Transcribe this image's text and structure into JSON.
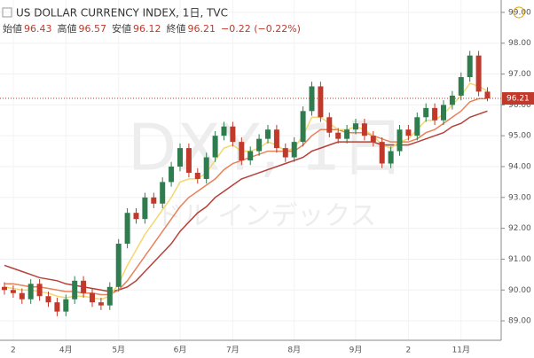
{
  "chart_data": {
    "type": "candlestick",
    "title": "US DOLLAR CURRENCY INDEX, 1日, TVC",
    "ohlc_header": [
      {
        "name": "始値",
        "value": 96.43
      },
      {
        "name": "高値",
        "value": 96.57
      },
      {
        "name": "安値",
        "value": 96.12
      },
      {
        "name": "終値",
        "value": 96.21
      }
    ],
    "change_label": "−0.22 (−0.22%)",
    "watermark": "DXY, 1日",
    "watermark_sub": "ドル インデックス",
    "last_price": 96.21,
    "categories": [
      null,
      "2",
      null,
      null,
      null,
      null,
      null,
      "4月",
      null,
      null,
      null,
      null,
      null,
      "5月",
      null,
      null,
      null,
      null,
      null,
      null,
      "6月",
      null,
      null,
      null,
      null,
      null,
      "7月",
      null,
      null,
      null,
      null,
      null,
      null,
      "8月",
      null,
      null,
      null,
      null,
      null,
      null,
      "9月",
      null,
      null,
      null,
      null,
      null,
      "2",
      null,
      null,
      null,
      null,
      null,
      "11月",
      null,
      null,
      null
    ],
    "open": [
      90.1,
      90.0,
      89.9,
      89.7,
      90.2,
      89.8,
      89.6,
      89.3,
      89.7,
      90.3,
      89.9,
      89.6,
      89.5,
      90.1,
      91.5,
      92.5,
      92.3,
      93.0,
      92.8,
      93.5,
      94.0,
      94.6,
      93.8,
      93.6,
      94.3,
      95.0,
      95.3,
      94.8,
      94.2,
      94.5,
      94.9,
      95.2,
      94.6,
      94.3,
      94.8,
      95.8,
      96.6,
      95.6,
      95.1,
      94.9,
      95.2,
      95.4,
      95.0,
      94.8,
      94.1,
      94.5,
      95.2,
      95.0,
      95.6,
      95.9,
      95.5,
      96.0,
      96.3,
      96.9,
      97.6,
      96.43
    ],
    "high": [
      90.25,
      90.15,
      90.05,
      90.35,
      90.35,
      89.95,
      89.75,
      89.85,
      90.45,
      90.45,
      90.05,
      89.75,
      90.25,
      91.65,
      92.65,
      92.65,
      93.15,
      93.15,
      93.65,
      94.15,
      94.75,
      94.75,
      93.95,
      94.45,
      95.15,
      95.45,
      95.45,
      94.95,
      94.65,
      95.05,
      95.35,
      95.35,
      94.75,
      94.95,
      95.95,
      96.75,
      96.75,
      95.75,
      95.25,
      95.35,
      95.55,
      95.55,
      95.15,
      94.95,
      94.65,
      95.35,
      95.35,
      95.75,
      96.05,
      96.05,
      96.15,
      96.45,
      97.05,
      97.75,
      97.75,
      96.57
    ],
    "low": [
      89.85,
      89.75,
      89.55,
      89.55,
      89.65,
      89.45,
      89.15,
      89.15,
      89.55,
      89.75,
      89.45,
      89.35,
      89.35,
      89.95,
      91.35,
      92.15,
      92.15,
      92.65,
      92.65,
      93.35,
      93.85,
      93.65,
      93.45,
      93.45,
      94.15,
      94.85,
      94.65,
      94.05,
      94.05,
      94.35,
      94.75,
      94.45,
      94.15,
      94.15,
      94.65,
      95.65,
      95.45,
      94.95,
      94.75,
      94.75,
      95.05,
      94.85,
      94.65,
      93.95,
      93.95,
      94.35,
      94.85,
      94.85,
      95.45,
      95.35,
      95.35,
      95.85,
      96.15,
      96.75,
      96.28,
      96.12
    ],
    "close": [
      90.0,
      89.9,
      89.7,
      90.2,
      89.8,
      89.6,
      89.3,
      89.7,
      90.3,
      89.9,
      89.6,
      89.5,
      90.1,
      91.5,
      92.5,
      92.3,
      93.0,
      92.8,
      93.5,
      94.0,
      94.6,
      93.8,
      93.6,
      94.3,
      95.0,
      95.3,
      94.8,
      94.2,
      94.5,
      94.9,
      95.2,
      94.6,
      94.3,
      94.8,
      95.8,
      96.6,
      95.6,
      95.1,
      94.9,
      95.2,
      95.4,
      95.0,
      94.8,
      94.1,
      94.5,
      95.2,
      95.0,
      95.6,
      95.9,
      95.5,
      96.0,
      96.3,
      96.9,
      97.6,
      96.43,
      96.21
    ],
    "up_color": "#2f7d4f",
    "down_color": "#c0392b",
    "series": [
      {
        "color": "#b5413a",
        "values": [
          90.8,
          90.7,
          90.6,
          90.5,
          90.4,
          90.35,
          90.3,
          90.2,
          90.15,
          90.1,
          90.05,
          90.0,
          89.95,
          90.0,
          90.1,
          90.3,
          90.6,
          90.9,
          91.2,
          91.5,
          91.9,
          92.2,
          92.5,
          92.7,
          93.0,
          93.2,
          93.4,
          93.6,
          93.7,
          93.8,
          93.9,
          94.0,
          94.1,
          94.2,
          94.3,
          94.5,
          94.6,
          94.7,
          94.8,
          94.8,
          94.8,
          94.8,
          94.8,
          94.7,
          94.7,
          94.7,
          94.7,
          94.8,
          94.9,
          95.0,
          95.1,
          95.3,
          95.4,
          95.6,
          95.7,
          95.8
        ]
      },
      {
        "color": "#e8825a",
        "values": [
          90.2,
          90.2,
          90.15,
          90.1,
          90.1,
          90.05,
          90.0,
          89.95,
          89.95,
          89.9,
          89.9,
          89.85,
          89.85,
          90.0,
          90.3,
          90.7,
          91.1,
          91.5,
          91.9,
          92.3,
          92.7,
          93.0,
          93.2,
          93.4,
          93.6,
          93.9,
          94.1,
          94.2,
          94.3,
          94.4,
          94.5,
          94.5,
          94.5,
          94.5,
          94.7,
          95.0,
          95.2,
          95.2,
          95.2,
          95.1,
          95.1,
          95.1,
          95.0,
          94.9,
          94.8,
          94.8,
          94.8,
          94.9,
          95.1,
          95.2,
          95.4,
          95.6,
          95.8,
          96.1,
          96.2,
          96.2
        ]
      },
      {
        "color": "#f5d76e",
        "values": [
          90.1,
          90.05,
          90.0,
          90.0,
          89.95,
          89.9,
          89.8,
          89.75,
          89.8,
          89.8,
          89.75,
          89.7,
          89.8,
          90.2,
          90.8,
          91.3,
          91.8,
          92.2,
          92.6,
          93.0,
          93.5,
          93.6,
          93.6,
          93.8,
          94.2,
          94.6,
          94.7,
          94.5,
          94.5,
          94.6,
          94.8,
          94.7,
          94.5,
          94.6,
          95.0,
          95.6,
          95.6,
          95.4,
          95.2,
          95.2,
          95.3,
          95.2,
          95.0,
          94.7,
          94.6,
          94.8,
          94.9,
          95.2,
          95.5,
          95.5,
          95.7,
          96.0,
          96.3,
          96.7,
          96.6,
          96.45
        ]
      }
    ],
    "ylim": [
      88.37,
      99.4
    ],
    "yticks": [
      {
        "value": 89,
        "label": "89.00"
      },
      {
        "value": 90,
        "label": "90.00"
      },
      {
        "value": 91,
        "label": "91.00"
      },
      {
        "value": 92,
        "label": "92.00"
      },
      {
        "value": 93,
        "label": "93.00"
      },
      {
        "value": 94,
        "label": "94.00"
      },
      {
        "value": 95,
        "label": "95.00"
      },
      {
        "value": 96,
        "label": "96.00"
      },
      {
        "value": 97,
        "label": "97.00"
      },
      {
        "value": 98,
        "label": "98.00"
      },
      {
        "value": 99,
        "label": "99.00"
      }
    ],
    "grid": true
  }
}
